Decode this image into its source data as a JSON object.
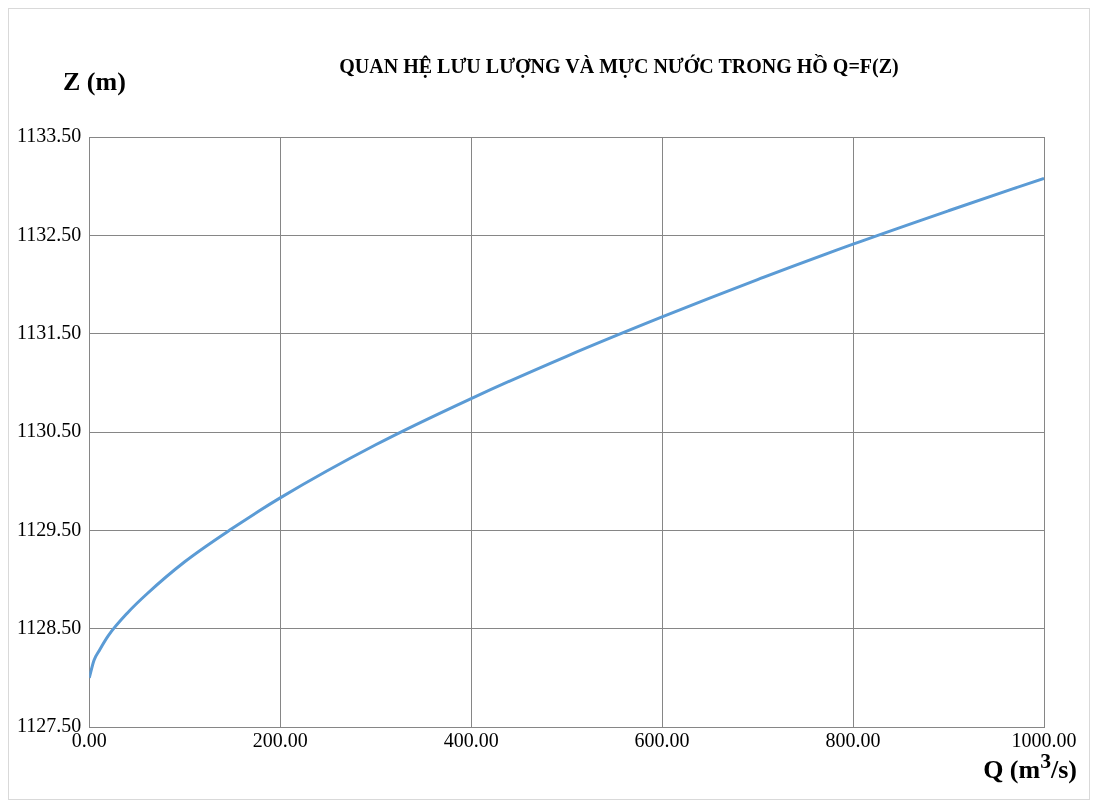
{
  "chart_data": {
    "type": "line",
    "title": "QUAN HỆ LƯU LƯỢNG VÀ MỰC NƯỚC TRONG HỒ Q=F(Z)",
    "xlabel": "Q (m$^{3}$/s)",
    "ylabel": "Z (m)",
    "x": [
      0,
      5,
      10,
      20,
      40,
      60,
      100,
      150,
      200,
      300,
      400,
      500,
      600,
      700,
      800,
      900,
      1000
    ],
    "series": [
      {
        "color": "#5b9bd5",
        "values": [
          1128.0,
          1128.18,
          1128.27,
          1128.43,
          1128.66,
          1128.85,
          1129.18,
          1129.52,
          1129.83,
          1130.37,
          1130.84,
          1131.27,
          1131.67,
          1132.05,
          1132.41,
          1132.75,
          1133.08
        ]
      }
    ],
    "xlim": [
      0,
      1000
    ],
    "xticks": [
      {
        "value": 0,
        "label": "0.00"
      },
      {
        "value": 200,
        "label": "200.00"
      },
      {
        "value": 400,
        "label": "400.00"
      },
      {
        "value": 600,
        "label": "600.00"
      },
      {
        "value": 800,
        "label": "800.00"
      },
      {
        "value": 1000,
        "label": "1000.00"
      }
    ],
    "ylim": [
      1127.5,
      1133.5
    ],
    "yticks": [
      {
        "value": 1127.5,
        "label": "1127.50"
      },
      {
        "value": 1128.5,
        "label": "1128.50"
      },
      {
        "value": 1129.5,
        "label": "1129.50"
      },
      {
        "value": 1130.5,
        "label": "1130.50"
      },
      {
        "value": 1131.5,
        "label": "1131.50"
      },
      {
        "value": 1132.5,
        "label": "1132.50"
      },
      {
        "value": 1133.5,
        "label": "1133.50"
      }
    ],
    "grid": true,
    "legend": false,
    "marker": "none",
    "line_style": "solid"
  }
}
